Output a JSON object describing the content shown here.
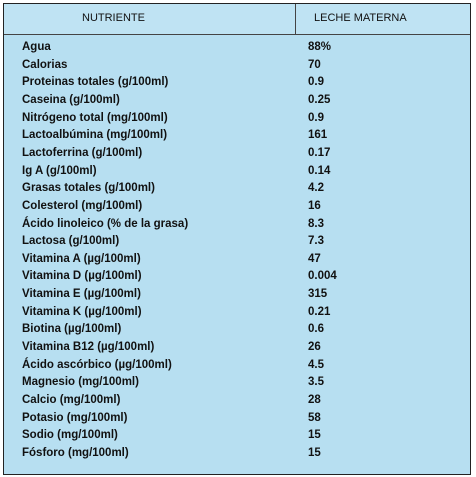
{
  "table": {
    "header": [
      "NUTRIENTE",
      "LECHE MATERNA"
    ],
    "rows": [
      [
        "Agua",
        "88%"
      ],
      [
        "Calorias",
        "70"
      ],
      [
        "Proteinas totales (g/100ml)",
        "0.9"
      ],
      [
        "Caseina (g/100ml)",
        "0.25"
      ],
      [
        "Nitrógeno total (mg/100ml)",
        "0.9"
      ],
      [
        "Lactoalbúmina (mg/100ml)",
        "161"
      ],
      [
        "Lactoferrina (g/100ml)",
        "0.17"
      ],
      [
        "Ig A (g/100ml)",
        "0.14"
      ],
      [
        "Grasas totales (g/100ml)",
        "4.2"
      ],
      [
        "Colesterol (mg/100ml)",
        "16"
      ],
      [
        "Ácido linoleico (% de la grasa)",
        "8.3"
      ],
      [
        "Lactosa (g/100ml)",
        "7.3"
      ],
      [
        "Vitamina A (µg/100ml)",
        "47"
      ],
      [
        "Vitamina D (µg/100ml)",
        "0.004"
      ],
      [
        "Vitamina E (µg/100ml)",
        "315"
      ],
      [
        "Vitamina K (µg/100ml)",
        "0.21"
      ],
      [
        "Biotina (µg/100ml)",
        "0.6"
      ],
      [
        "Vitamina B12 (µg/100ml)",
        "26"
      ],
      [
        "Ácido ascórbico (µg/100ml)",
        "4.5"
      ],
      [
        "Magnesio (mg/100ml)",
        "3.5"
      ],
      [
        "Calcio (mg/100ml)",
        "28"
      ],
      [
        "Potasio (mg/100ml)",
        "58"
      ],
      [
        "Sodio (mg/100ml)",
        "15"
      ],
      [
        "Fósforo (mg/100ml)",
        "15"
      ]
    ]
  }
}
